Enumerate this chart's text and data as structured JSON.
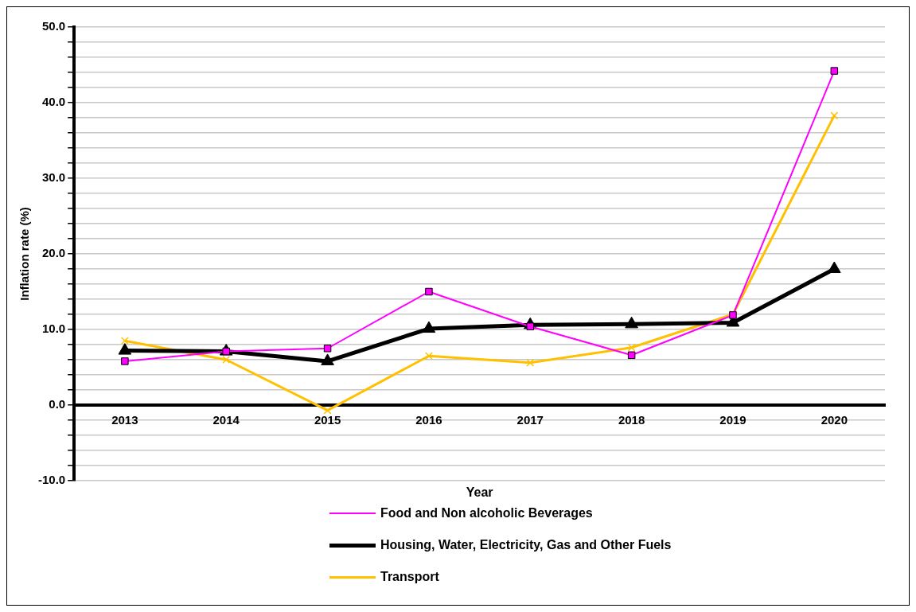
{
  "chart_data": {
    "type": "line",
    "xlabel": "Year",
    "ylabel": "Inflation rate (%)",
    "categories": [
      "2013",
      "2014",
      "2015",
      "2016",
      "2017",
      "2018",
      "2019",
      "2020"
    ],
    "series": [
      {
        "name": "Food and Non alcoholic Beverages",
        "color": "#ff00ff",
        "marker": "square",
        "values": [
          5.8,
          7.1,
          7.5,
          15.0,
          10.4,
          6.6,
          11.9,
          44.2
        ]
      },
      {
        "name": "Housing, Water, Electricity, Gas and Other Fuels",
        "color": "#000000",
        "marker": "triangle",
        "values": [
          7.2,
          7.1,
          5.8,
          10.1,
          10.6,
          10.7,
          10.9,
          18.0
        ]
      },
      {
        "name": "Transport",
        "color": "#ffc000",
        "marker": "cross",
        "values": [
          8.5,
          6.0,
          -0.7,
          6.5,
          5.6,
          7.6,
          12.0,
          38.3
        ]
      }
    ],
    "ylim": [
      -10,
      50
    ],
    "yticks": [
      {
        "value": -10,
        "label": "-10.0"
      },
      {
        "value": -8,
        "label": null
      },
      {
        "value": -6,
        "label": null
      },
      {
        "value": -4,
        "label": null
      },
      {
        "value": -2,
        "label": null
      },
      {
        "value": 0,
        "label": "0.0"
      },
      {
        "value": 2,
        "label": null
      },
      {
        "value": 4,
        "label": null
      },
      {
        "value": 6,
        "label": null
      },
      {
        "value": 8,
        "label": null
      },
      {
        "value": 10,
        "label": "10.0"
      },
      {
        "value": 12,
        "label": null
      },
      {
        "value": 14,
        "label": null
      },
      {
        "value": 16,
        "label": null
      },
      {
        "value": 18,
        "label": null
      },
      {
        "value": 20,
        "label": "20.0"
      },
      {
        "value": 22,
        "label": null
      },
      {
        "value": 24,
        "label": null
      },
      {
        "value": 26,
        "label": null
      },
      {
        "value": 28,
        "label": null
      },
      {
        "value": 30,
        "label": "30.0"
      },
      {
        "value": 32,
        "label": null
      },
      {
        "value": 34,
        "label": null
      },
      {
        "value": 36,
        "label": null
      },
      {
        "value": 38,
        "label": null
      },
      {
        "value": 40,
        "label": "40.0"
      },
      {
        "value": 42,
        "label": null
      },
      {
        "value": 44,
        "label": null
      },
      {
        "value": 46,
        "label": null
      },
      {
        "value": 48,
        "label": null
      },
      {
        "value": 50,
        "label": "50.0"
      }
    ],
    "grid": "y",
    "legend": "bottom"
  }
}
